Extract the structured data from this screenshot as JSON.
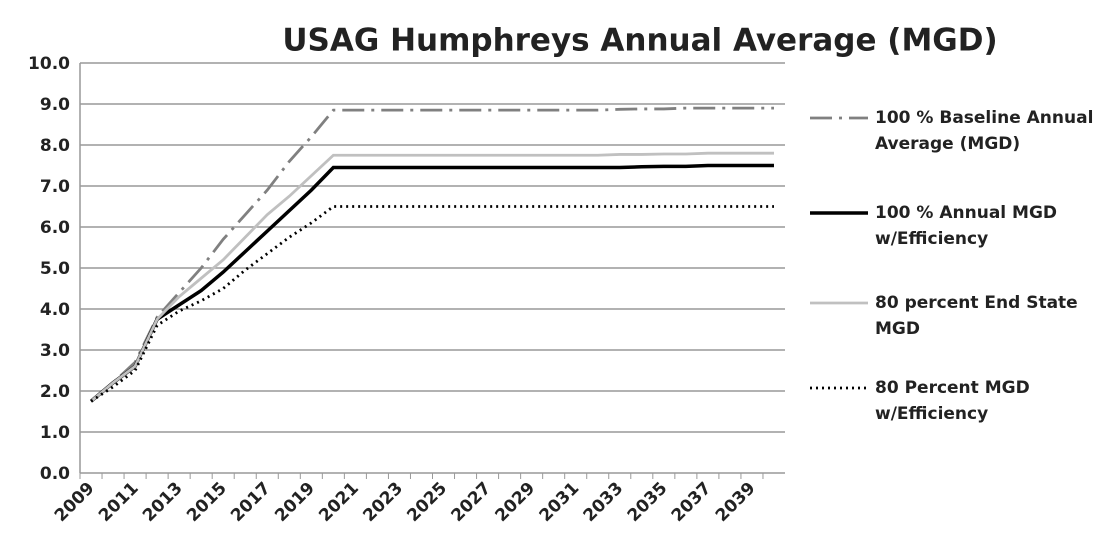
{
  "chart_data": {
    "type": "line",
    "title": "USAG Humphreys Annual Average (MGD)",
    "categories": [
      "2009",
      null,
      "2011",
      null,
      "2013",
      null,
      "2015",
      null,
      "2017",
      null,
      "2019",
      null,
      "2021",
      null,
      "2023",
      null,
      "2025",
      null,
      "2027",
      null,
      "2029",
      null,
      "2031",
      null,
      "2033",
      null,
      "2035",
      null,
      "2037",
      null,
      "2039",
      null
    ],
    "series": [
      {
        "name": "100 % Baseline Annual Average (MGD)",
        "color": "#808080",
        "style": "dashdot",
        "values": [
          1.75,
          2.2,
          2.7,
          3.8,
          4.4,
          5.0,
          5.7,
          6.3,
          6.9,
          7.6,
          8.2,
          8.85,
          8.85,
          8.85,
          8.85,
          8.85,
          8.85,
          8.85,
          8.85,
          8.85,
          8.85,
          8.85,
          8.85,
          8.85,
          8.87,
          8.88,
          8.88,
          8.9,
          8.9,
          8.9,
          8.9,
          8.9
        ]
      },
      {
        "name": "100 % Annual MGD w/Efficiency",
        "color": "#000000",
        "style": "solid",
        "values": [
          1.75,
          2.2,
          2.6,
          3.75,
          4.1,
          4.45,
          4.9,
          5.4,
          5.9,
          6.4,
          6.9,
          7.45,
          7.45,
          7.45,
          7.45,
          7.45,
          7.45,
          7.45,
          7.45,
          7.45,
          7.45,
          7.45,
          7.45,
          7.45,
          7.45,
          7.47,
          7.48,
          7.48,
          7.5,
          7.5,
          7.5,
          7.5
        ]
      },
      {
        "name": "80 percent End State MGD",
        "color": "#c0c0c0",
        "style": "solid",
        "values": [
          1.75,
          2.2,
          2.6,
          3.75,
          4.3,
          4.75,
          5.2,
          5.75,
          6.3,
          6.75,
          7.25,
          7.75,
          7.75,
          7.75,
          7.75,
          7.75,
          7.75,
          7.75,
          7.75,
          7.75,
          7.75,
          7.75,
          7.75,
          7.75,
          7.77,
          7.77,
          7.78,
          7.78,
          7.8,
          7.8,
          7.8,
          7.8
        ]
      },
      {
        "name": "80 Percent MGD w/Efficiency",
        "color": "#000000",
        "style": "dotted",
        "values": [
          1.75,
          2.1,
          2.5,
          3.6,
          3.95,
          4.2,
          4.5,
          4.95,
          5.35,
          5.75,
          6.1,
          6.5,
          6.5,
          6.5,
          6.5,
          6.5,
          6.5,
          6.5,
          6.5,
          6.5,
          6.5,
          6.5,
          6.5,
          6.5,
          6.5,
          6.5,
          6.5,
          6.5,
          6.5,
          6.5,
          6.5,
          6.5
        ]
      }
    ],
    "ylim": [
      0,
      10
    ],
    "yticks": [
      {
        "value": 0,
        "label": "0.0"
      },
      {
        "value": 1,
        "label": "1.0"
      },
      {
        "value": 2,
        "label": "2.0"
      },
      {
        "value": 3,
        "label": "3.0"
      },
      {
        "value": 4,
        "label": "4.0"
      },
      {
        "value": 5,
        "label": "5.0"
      },
      {
        "value": 6,
        "label": "6.0"
      },
      {
        "value": 7,
        "label": "7.0"
      },
      {
        "value": 8,
        "label": "8.0"
      },
      {
        "value": 9,
        "label": "9.0"
      },
      {
        "value": 10,
        "label": "10.0"
      }
    ],
    "grid": true,
    "legend": "right"
  }
}
